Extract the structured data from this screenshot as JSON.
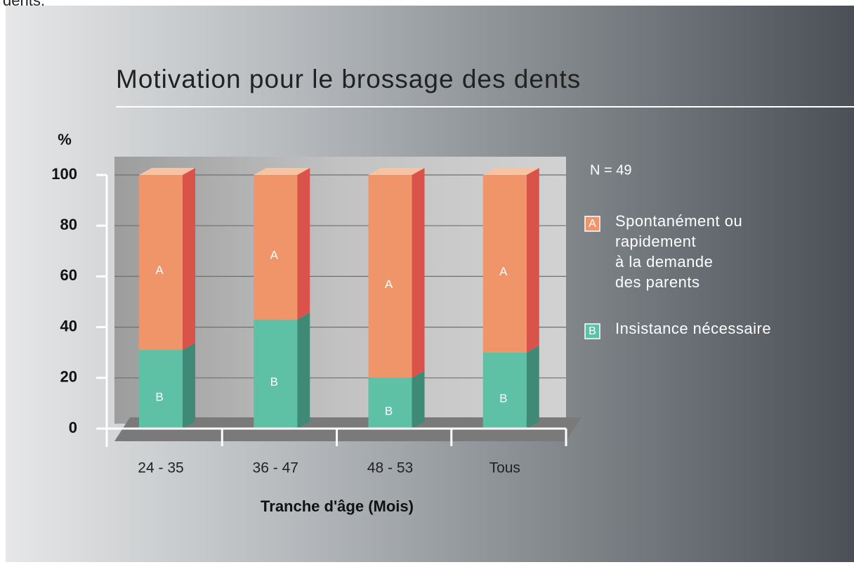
{
  "caption_fragment": "dents.",
  "chart_data": {
    "type": "bar3d_stacked",
    "title": "Motivation pour le brossage des dents",
    "y_label": "%",
    "x_label": "Tranche d'âge (Mois)",
    "annotation": "N = 49",
    "categories": [
      "24 - 35",
      "36 - 47",
      "48 - 53",
      "Tous"
    ],
    "series": [
      {
        "name": "Spontanément ou\nrapidement\nà la demande\ndes parents",
        "key": "A",
        "color": "#f0956a",
        "side_color": "#d9534a",
        "top_color": "#f8c3a2",
        "values": [
          69,
          57,
          80,
          70
        ]
      },
      {
        "name": "Insistance nécessaire",
        "key": "B",
        "color": "#5ec0a5",
        "side_color": "#3e8a77",
        "top_color": "#8fd6c2",
        "values": [
          31,
          43,
          20,
          30
        ]
      }
    ],
    "ylim": [
      0,
      100
    ],
    "yticks": [
      0,
      20,
      40,
      60,
      80,
      100
    ],
    "grid": true
  }
}
